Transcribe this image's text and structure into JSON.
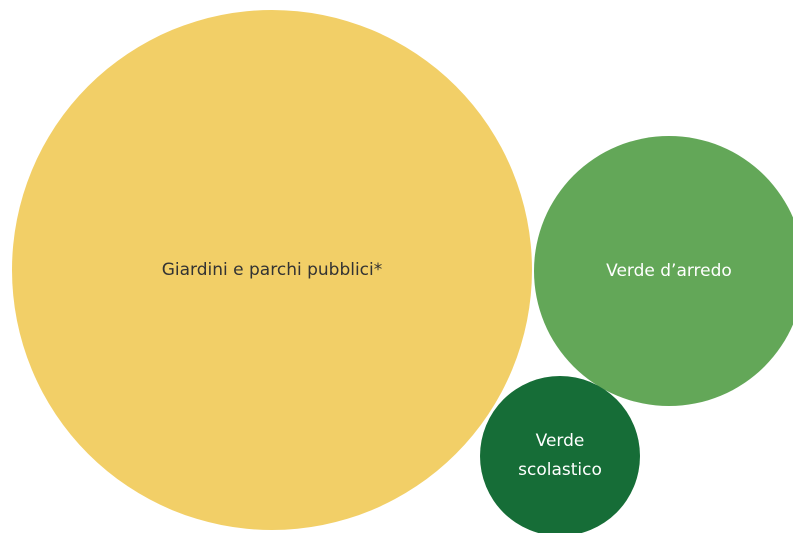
{
  "chart_data": {
    "type": "bubble",
    "categories": [
      "Giardini e parchi pubblici*",
      "Verde d’arredo",
      "Verde scolastico"
    ],
    "values": [
      676,
      182,
      64
    ],
    "colors": [
      "#f2cf67",
      "#63a758",
      "#166d37"
    ]
  }
}
